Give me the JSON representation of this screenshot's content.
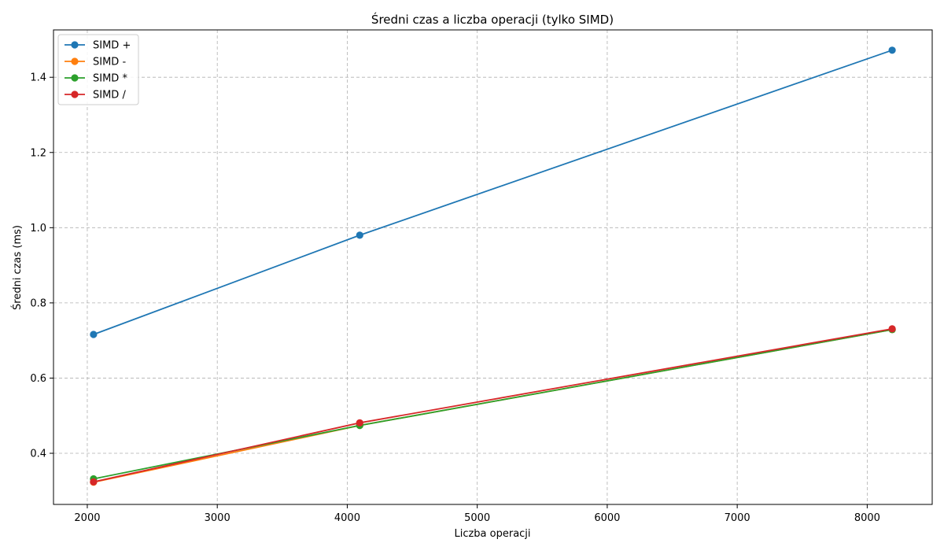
{
  "chart_data": {
    "type": "line",
    "title": "Średni czas a liczba operacji (tylko SIMD)",
    "xlabel": "Liczba operacji",
    "ylabel": "Średni czas (ms)",
    "x": [
      2048,
      4096,
      8192
    ],
    "xlim": [
      1740,
      8500
    ],
    "ylim": [
      0.264,
      1.526
    ],
    "xticks": [
      2000,
      3000,
      4000,
      5000,
      6000,
      7000,
      8000
    ],
    "yticks": [
      0.4,
      0.6,
      0.8,
      1.0,
      1.2,
      1.4
    ],
    "xtick_labels": [
      "2000",
      "3000",
      "4000",
      "5000",
      "6000",
      "7000",
      "8000"
    ],
    "ytick_labels": [
      "0.4",
      "0.6",
      "0.8",
      "1.0",
      "1.2",
      "1.4"
    ],
    "grid": true,
    "grid_style": "dashed",
    "legend_position": "top-left",
    "markers": "circle",
    "series": [
      {
        "name": "SIMD +",
        "color": "#1f77b4",
        "values": [
          0.716,
          0.98,
          1.472
        ]
      },
      {
        "name": "SIMD -",
        "color": "#ff7f0e",
        "values": [
          0.323,
          0.474,
          0.729
        ]
      },
      {
        "name": "SIMD *",
        "color": "#2ca02c",
        "values": [
          0.332,
          0.474,
          0.729
        ]
      },
      {
        "name": "SIMD /",
        "color": "#d62728",
        "values": [
          0.324,
          0.481,
          0.731
        ]
      }
    ]
  }
}
